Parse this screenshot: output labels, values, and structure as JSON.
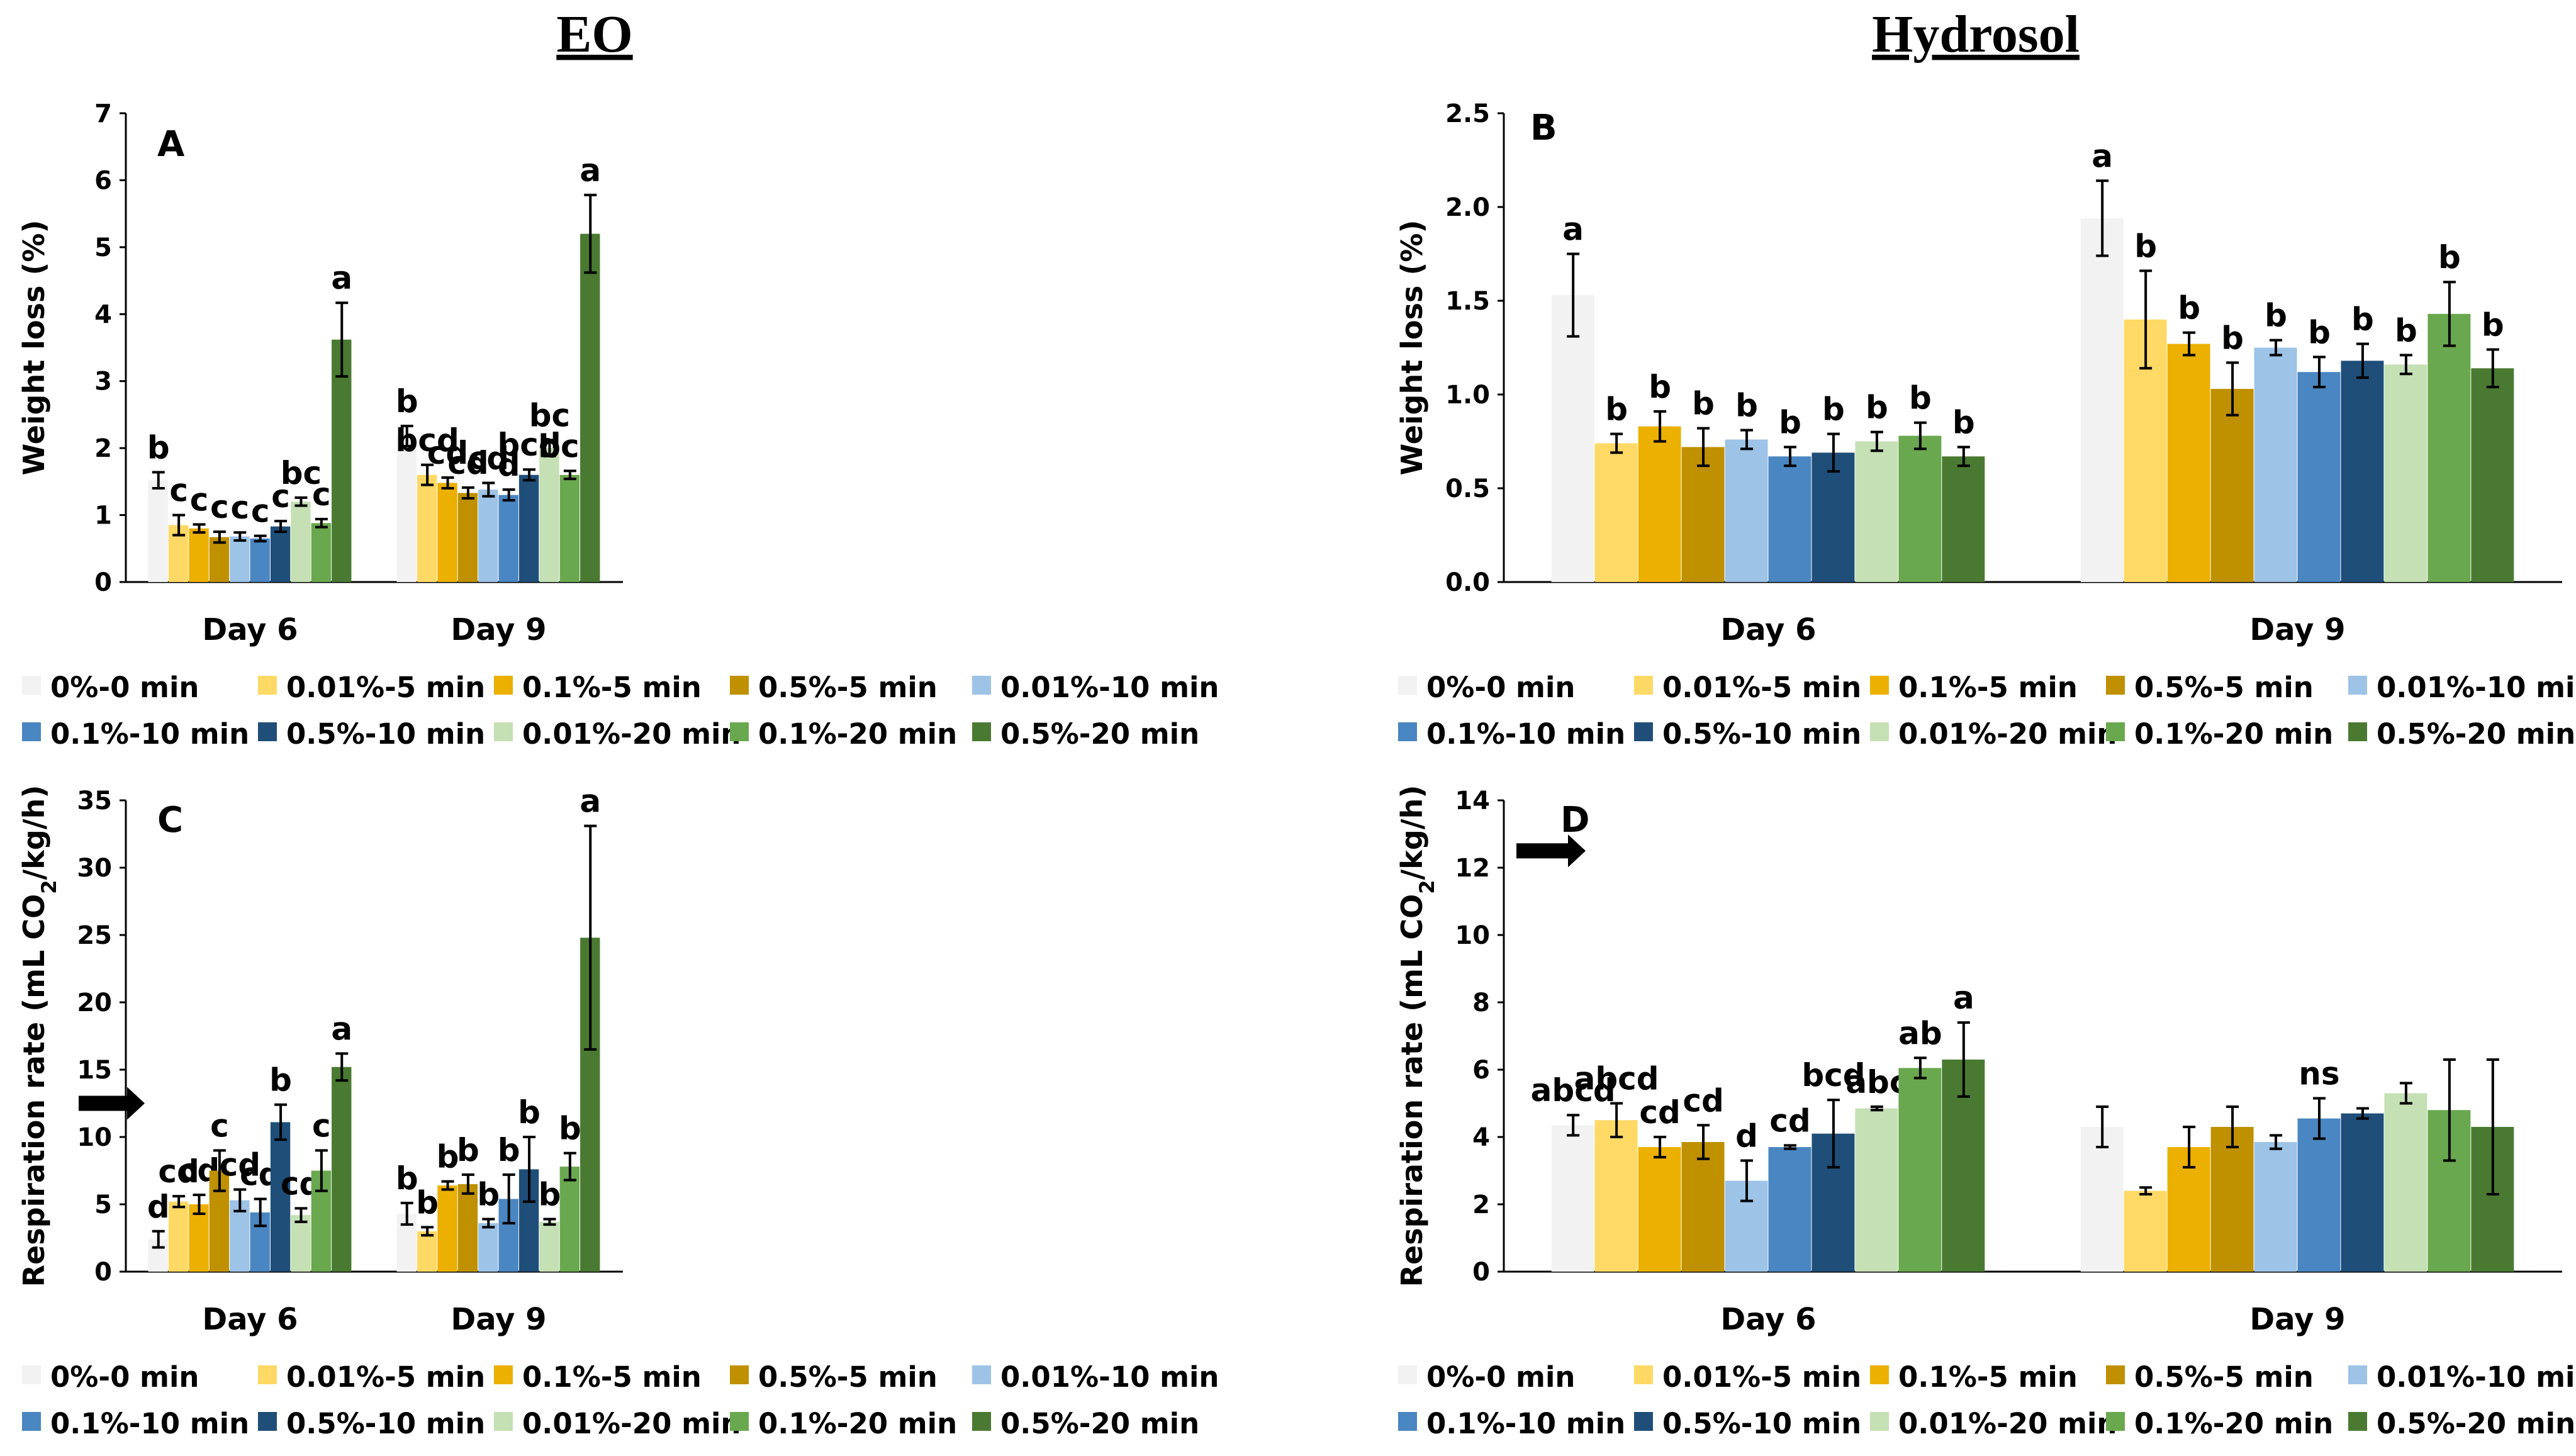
{
  "titles": {
    "left": "EO",
    "right": "Hydrosol"
  },
  "series_names": [
    "0%-0 min",
    "0.01%-5 min",
    "0.1%-5 min",
    "0.5%-5 min",
    "0.01%-10 min",
    "0.1%-10 min",
    "0.5%-10 min",
    "0.01%-20 min",
    "0.1%-20 min",
    "0.5%-20 min"
  ],
  "series_colors": [
    "#f2f2f2",
    "#ffd966",
    "#ecb000",
    "#bf9000",
    "#9dc3e6",
    "#4a86c1",
    "#1f4e79",
    "#c5e0b4",
    "#6aa84f",
    "#4a7a32"
  ],
  "chart_data": [
    {
      "panel": "A",
      "type": "bar",
      "categories": [
        "Day 6",
        "Day 9"
      ],
      "ylabel": "Weight loss (%)",
      "ylim": [
        0,
        7
      ],
      "yticks": [
        "0",
        "1",
        "2",
        "3",
        "4",
        "5",
        "6",
        "7"
      ],
      "series": [
        {
          "name": "0%-0 min",
          "values": [
            1.52,
            2.18
          ],
          "errors": [
            0.12,
            0.15
          ],
          "labels": [
            "b",
            "b"
          ]
        },
        {
          "name": "0.01%-5 min",
          "values": [
            0.85,
            1.6
          ],
          "errors": [
            0.15,
            0.15
          ],
          "labels": [
            "c",
            "bcd"
          ]
        },
        {
          "name": "0.1%-5 min",
          "values": [
            0.8,
            1.48
          ],
          "errors": [
            0.06,
            0.08
          ],
          "labels": [
            "c",
            "cd"
          ]
        },
        {
          "name": "0.5%-5 min",
          "values": [
            0.67,
            1.33
          ],
          "errors": [
            0.08,
            0.08
          ],
          "labels": [
            "c",
            "cd"
          ]
        },
        {
          "name": "0.01%-10 min",
          "values": [
            0.68,
            1.38
          ],
          "errors": [
            0.06,
            0.1
          ],
          "labels": [
            "c",
            "cd"
          ]
        },
        {
          "name": "0.1%-10 min",
          "values": [
            0.65,
            1.3
          ],
          "errors": [
            0.04,
            0.08
          ],
          "labels": [
            "c",
            "d"
          ]
        },
        {
          "name": "0.5%-10 min",
          "values": [
            0.83,
            1.6
          ],
          "errors": [
            0.08,
            0.08
          ],
          "labels": [
            "c",
            "bcd"
          ]
        },
        {
          "name": "0.01%-20 min",
          "values": [
            1.2,
            2.0
          ],
          "errors": [
            0.06,
            0.12
          ],
          "labels": [
            "bc",
            "bc"
          ]
        },
        {
          "name": "0.1%-20 min",
          "values": [
            0.88,
            1.6
          ],
          "errors": [
            0.06,
            0.06
          ],
          "labels": [
            "c",
            "bcd"
          ]
        },
        {
          "name": "0.5%-20 min",
          "values": [
            3.62,
            5.2
          ],
          "errors": [
            0.55,
            0.58
          ],
          "labels": [
            "a",
            "a"
          ]
        }
      ]
    },
    {
      "panel": "B",
      "type": "bar",
      "categories": [
        "Day 6",
        "Day 9"
      ],
      "ylabel": "Weight loss (%)",
      "ylim": [
        0,
        2.5
      ],
      "yticks": [
        "0.0",
        "0.5",
        "1.0",
        "1.5",
        "2.0",
        "2.5"
      ],
      "series": [
        {
          "name": "0%-0 min",
          "values": [
            1.53,
            1.94
          ],
          "errors": [
            0.22,
            0.2
          ],
          "labels": [
            "a",
            "a"
          ]
        },
        {
          "name": "0.01%-5 min",
          "values": [
            0.74,
            1.4
          ],
          "errors": [
            0.05,
            0.26
          ],
          "labels": [
            "b",
            "b"
          ]
        },
        {
          "name": "0.1%-5 min",
          "values": [
            0.83,
            1.27
          ],
          "errors": [
            0.08,
            0.06
          ],
          "labels": [
            "b",
            "b"
          ]
        },
        {
          "name": "0.5%-5 min",
          "values": [
            0.72,
            1.03
          ],
          "errors": [
            0.1,
            0.14
          ],
          "labels": [
            "b",
            "b"
          ]
        },
        {
          "name": "0.01%-10 min",
          "values": [
            0.76,
            1.25
          ],
          "errors": [
            0.05,
            0.04
          ],
          "labels": [
            "b",
            "b"
          ]
        },
        {
          "name": "0.1%-10 min",
          "values": [
            0.67,
            1.12
          ],
          "errors": [
            0.05,
            0.08
          ],
          "labels": [
            "b",
            "b"
          ]
        },
        {
          "name": "0.5%-10 min",
          "values": [
            0.69,
            1.18
          ],
          "errors": [
            0.1,
            0.09
          ],
          "labels": [
            "b",
            "b"
          ]
        },
        {
          "name": "0.01%-20 min",
          "values": [
            0.75,
            1.16
          ],
          "errors": [
            0.05,
            0.05
          ],
          "labels": [
            "b",
            "b"
          ]
        },
        {
          "name": "0.1%-20 min",
          "values": [
            0.78,
            1.43
          ],
          "errors": [
            0.07,
            0.17
          ],
          "labels": [
            "b",
            "b"
          ]
        },
        {
          "name": "0.5%-20 min",
          "values": [
            0.67,
            1.14
          ],
          "errors": [
            0.05,
            0.1
          ],
          "labels": [
            "b",
            "b"
          ]
        }
      ]
    },
    {
      "panel": "C",
      "type": "bar",
      "categories": [
        "Day 6",
        "Day 9"
      ],
      "ylabel_main": "Respiration rate (mL CO",
      "ylabel_sub": "2",
      "ylabel_end": "/kg/h)",
      "ylim": [
        0,
        35
      ],
      "yticks": [
        "0",
        "5",
        "10",
        "15",
        "20",
        "25",
        "30",
        "35"
      ],
      "arrow_value": 12.5,
      "series": [
        {
          "name": "0%-0 min",
          "values": [
            2.4,
            4.3
          ],
          "errors": [
            0.6,
            0.8
          ],
          "labels": [
            "d",
            "b"
          ]
        },
        {
          "name": "0.01%-5 min",
          "values": [
            5.2,
            3.0
          ],
          "errors": [
            0.4,
            0.3
          ],
          "labels": [
            "cd",
            "b"
          ]
        },
        {
          "name": "0.1%-5 min",
          "values": [
            5.0,
            6.4
          ],
          "errors": [
            0.7,
            0.3
          ],
          "labels": [
            "cd",
            "b"
          ]
        },
        {
          "name": "0.5%-5 min",
          "values": [
            7.5,
            6.5
          ],
          "errors": [
            1.5,
            0.7
          ],
          "labels": [
            "c",
            "b"
          ]
        },
        {
          "name": "0.01%-10 min",
          "values": [
            5.3,
            3.6
          ],
          "errors": [
            0.8,
            0.3
          ],
          "labels": [
            "cd",
            "b"
          ]
        },
        {
          "name": "0.1%-10 min",
          "values": [
            4.4,
            5.4
          ],
          "errors": [
            1.0,
            1.8
          ],
          "labels": [
            "cd",
            "b"
          ]
        },
        {
          "name": "0.5%-10 min",
          "values": [
            11.1,
            7.6
          ],
          "errors": [
            1.3,
            2.4
          ],
          "labels": [
            "b",
            "b"
          ]
        },
        {
          "name": "0.01%-20 min",
          "values": [
            4.2,
            3.7
          ],
          "errors": [
            0.5,
            0.2
          ],
          "labels": [
            "cd",
            "b"
          ]
        },
        {
          "name": "0.1%-20 min",
          "values": [
            7.5,
            7.8
          ],
          "errors": [
            1.5,
            1.0
          ],
          "labels": [
            "c",
            "b"
          ]
        },
        {
          "name": "0.5%-20 min",
          "values": [
            15.2,
            24.8
          ],
          "errors": [
            1.0,
            8.3
          ],
          "labels": [
            "a",
            "a"
          ]
        }
      ]
    },
    {
      "panel": "D",
      "type": "bar",
      "categories": [
        "Day 6",
        "Day 9"
      ],
      "ylabel_main": "Respiration rate (mL CO",
      "ylabel_sub": "2",
      "ylabel_end": "/kg/h)",
      "ylim": [
        0,
        14
      ],
      "yticks": [
        "0",
        "2",
        "4",
        "6",
        "8",
        "10",
        "12",
        "14"
      ],
      "arrow_value": 12.5,
      "series": [
        {
          "name": "0%-0 min",
          "values": [
            4.35,
            4.3
          ],
          "errors": [
            0.3,
            0.6
          ],
          "labels": [
            "abcd",
            ""
          ]
        },
        {
          "name": "0.01%-5 min",
          "values": [
            4.5,
            2.4
          ],
          "errors": [
            0.5,
            0.1
          ],
          "labels": [
            "abcd",
            ""
          ]
        },
        {
          "name": "0.1%-5 min",
          "values": [
            3.7,
            3.7
          ],
          "errors": [
            0.3,
            0.6
          ],
          "labels": [
            "cd",
            ""
          ]
        },
        {
          "name": "0.5%-5 min",
          "values": [
            3.85,
            4.3
          ],
          "errors": [
            0.5,
            0.6
          ],
          "labels": [
            "cd",
            ""
          ]
        },
        {
          "name": "0.01%-10 min",
          "values": [
            2.7,
            3.85
          ],
          "errors": [
            0.6,
            0.2
          ],
          "labels": [
            "d",
            ""
          ]
        },
        {
          "name": "0.1%-10 min",
          "values": [
            3.7,
            4.55
          ],
          "errors": [
            0.05,
            0.6
          ],
          "labels": [
            "cd",
            "ns"
          ]
        },
        {
          "name": "0.5%-10 min",
          "values": [
            4.1,
            4.7
          ],
          "errors": [
            1.0,
            0.15
          ],
          "labels": [
            "bcd",
            ""
          ]
        },
        {
          "name": "0.01%-20 min",
          "values": [
            4.85,
            5.3
          ],
          "errors": [
            0.05,
            0.3
          ],
          "labels": [
            "abc",
            ""
          ]
        },
        {
          "name": "0.1%-20 min",
          "values": [
            6.05,
            4.8
          ],
          "errors": [
            0.3,
            1.5
          ],
          "labels": [
            "ab",
            ""
          ]
        },
        {
          "name": "0.5%-20 min",
          "values": [
            6.3,
            4.3
          ],
          "errors": [
            1.1,
            2.0
          ],
          "labels": [
            "a",
            ""
          ]
        }
      ]
    }
  ]
}
